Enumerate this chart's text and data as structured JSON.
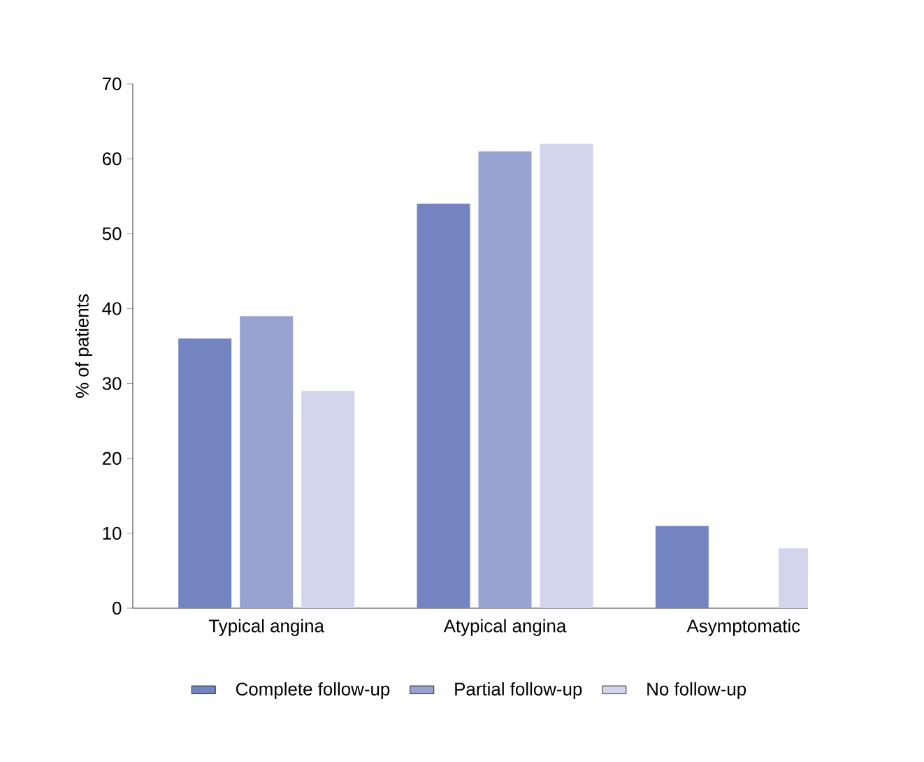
{
  "chart_data": {
    "type": "bar",
    "ylabel": "% of patients",
    "categories": [
      "Typical angina",
      "Atypical angina",
      "Asymptomatic"
    ],
    "series": [
      {
        "name": "Complete follow-up",
        "color": "#7484c0",
        "values": [
          36,
          54,
          11
        ]
      },
      {
        "name": "Partial follow-up",
        "color": "#99a3d2",
        "values": [
          39,
          61,
          null
        ]
      },
      {
        "name": "No follow-up",
        "color": "#d3d5ec",
        "values": [
          29,
          62,
          8
        ]
      }
    ],
    "ylim": [
      0,
      70
    ],
    "yticks": [
      0,
      10,
      20,
      30,
      40,
      50,
      60,
      70
    ],
    "grid": false,
    "legend": "bottom"
  }
}
